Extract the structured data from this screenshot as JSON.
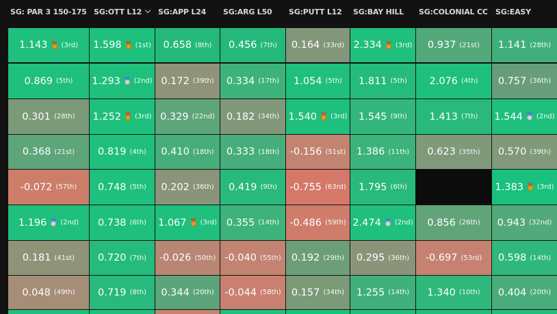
{
  "columns": [
    {
      "label": "SG: PAR 3 150-175",
      "sorted": false
    },
    {
      "label": "SG:OTT L12",
      "sorted": true
    },
    {
      "label": "SG:APP L24",
      "sorted": false
    },
    {
      "label": "SG:ARG L50",
      "sorted": false
    },
    {
      "label": "SG:PUTT L12",
      "sorted": false
    },
    {
      "label": "SG:BAY HILL",
      "sorted": false
    },
    {
      "label": "SG:COLONIAL CC",
      "sorted": false
    },
    {
      "label": "SG:EASY",
      "sorted": false
    }
  ],
  "colors": {
    "strong_green": "#19bd7c",
    "mid_green": "#3db37a",
    "olive": "#7e9a78",
    "neutral": "#9b9077",
    "salmon": "#c97e6c",
    "red": "#d67866",
    "empty": "#0d0d0d"
  },
  "rows": [
    [
      {
        "value": "1.143",
        "rank": "(3rd)",
        "medal": "gold",
        "color": "#1fbf7e"
      },
      {
        "value": "1.598",
        "rank": "(1st)",
        "medal": "gold",
        "color": "#1fbf7e"
      },
      {
        "value": "0.658",
        "rank": "(8th)",
        "medal": "",
        "color": "#24b97b"
      },
      {
        "value": "0.456",
        "rank": "(7th)",
        "medal": "",
        "color": "#24b97b"
      },
      {
        "value": "0.164",
        "rank": "(33rd)",
        "medal": "",
        "color": "#82977a"
      },
      {
        "value": "2.334",
        "rank": "(3rd)",
        "medal": "gold",
        "color": "#1fbf7e"
      },
      {
        "value": "0.937",
        "rank": "(21st)",
        "medal": "",
        "color": "#53a87a"
      },
      {
        "value": "1.141",
        "rank": "(28th)",
        "medal": "",
        "color": "#3fb07b"
      }
    ],
    [
      {
        "value": "0.869",
        "rank": "(5th)",
        "medal": "",
        "color": "#1fbf7e"
      },
      {
        "value": "1.293",
        "rank": "(2nd)",
        "medal": "silver",
        "color": "#1fbf7e"
      },
      {
        "value": "0.172",
        "rank": "(39th)",
        "medal": "",
        "color": "#8e9379"
      },
      {
        "value": "0.334",
        "rank": "(17th)",
        "medal": "",
        "color": "#3db37b"
      },
      {
        "value": "1.054",
        "rank": "(5th)",
        "medal": "",
        "color": "#1fbf7e"
      },
      {
        "value": "1.811",
        "rank": "(5th)",
        "medal": "",
        "color": "#24bb7c"
      },
      {
        "value": "2.076",
        "rank": "(4th)",
        "medal": "",
        "color": "#1fbf7e"
      },
      {
        "value": "0.757",
        "rank": "(36th)",
        "medal": "",
        "color": "#679e79"
      }
    ],
    [
      {
        "value": "0.301",
        "rank": "(28th)",
        "medal": "",
        "color": "#7b9a78"
      },
      {
        "value": "1.252",
        "rank": "(3rd)",
        "medal": "gold",
        "color": "#1fbf7e"
      },
      {
        "value": "0.329",
        "rank": "(22nd)",
        "medal": "",
        "color": "#5ea57a"
      },
      {
        "value": "0.182",
        "rank": "(34th)",
        "medal": "",
        "color": "#82977a"
      },
      {
        "value": "1.540",
        "rank": "(3rd)",
        "medal": "gold",
        "color": "#1fbf7e"
      },
      {
        "value": "1.545",
        "rank": "(9th)",
        "medal": "",
        "color": "#33b67c"
      },
      {
        "value": "1.413",
        "rank": "(7th)",
        "medal": "",
        "color": "#28b97c"
      },
      {
        "value": "1.544",
        "rank": "(2nd)",
        "medal": "silver",
        "color": "#1fbf7e"
      }
    ],
    [
      {
        "value": "0.368",
        "rank": "(21st)",
        "medal": "",
        "color": "#5ea57a"
      },
      {
        "value": "0.819",
        "rank": "(4th)",
        "medal": "",
        "color": "#1fbf7e"
      },
      {
        "value": "0.410",
        "rank": "(18th)",
        "medal": "",
        "color": "#47ae7b"
      },
      {
        "value": "0.333",
        "rank": "(18th)",
        "medal": "",
        "color": "#47ae7b"
      },
      {
        "value": "-0.156",
        "rank": "(51st)",
        "medal": "",
        "color": "#c28470"
      },
      {
        "value": "1.386",
        "rank": "(11th)",
        "medal": "",
        "color": "#3bb37b"
      },
      {
        "value": "0.623",
        "rank": "(35th)",
        "medal": "",
        "color": "#7f9979"
      },
      {
        "value": "0.570",
        "rank": "(39th)",
        "medal": "",
        "color": "#7f9979"
      }
    ],
    [
      {
        "value": "-0.072",
        "rank": "(57th)",
        "medal": "",
        "color": "#cc7e6b"
      },
      {
        "value": "0.748",
        "rank": "(5th)",
        "medal": "",
        "color": "#1fbf7e"
      },
      {
        "value": "0.202",
        "rank": "(36th)",
        "medal": "",
        "color": "#899479"
      },
      {
        "value": "0.419",
        "rank": "(9th)",
        "medal": "",
        "color": "#28b97c"
      },
      {
        "value": "-0.755",
        "rank": "(63rd)",
        "medal": "",
        "color": "#d4796a"
      },
      {
        "value": "1.795",
        "rank": "(6th)",
        "medal": "",
        "color": "#28b97c"
      },
      {
        "value": "",
        "rank": "",
        "medal": "",
        "color": "#0c0c0c"
      },
      {
        "value": "1.383",
        "rank": "(3rd)",
        "medal": "gold",
        "color": "#19c07e"
      }
    ],
    [
      {
        "value": "1.196",
        "rank": "(2nd)",
        "medal": "silver",
        "color": "#1fbf7e"
      },
      {
        "value": "0.738",
        "rank": "(6th)",
        "medal": "",
        "color": "#1fbf7e"
      },
      {
        "value": "1.067",
        "rank": "(3rd)",
        "medal": "gold",
        "color": "#1fbf7e"
      },
      {
        "value": "0.355",
        "rank": "(14th)",
        "medal": "",
        "color": "#3db37b"
      },
      {
        "value": "-0.486",
        "rank": "(59th)",
        "medal": "",
        "color": "#cf7c6b"
      },
      {
        "value": "2.474",
        "rank": "(2nd)",
        "medal": "silver",
        "color": "#1fbf7e"
      },
      {
        "value": "0.856",
        "rank": "(26th)",
        "medal": "",
        "color": "#62a47a"
      },
      {
        "value": "0.943",
        "rank": "(32nd)",
        "medal": "",
        "color": "#52a97a"
      }
    ],
    [
      {
        "value": "0.181",
        "rank": "(41st)",
        "medal": "",
        "color": "#8f9378"
      },
      {
        "value": "0.720",
        "rank": "(7th)",
        "medal": "",
        "color": "#24bb7c"
      },
      {
        "value": "-0.026",
        "rank": "(50th)",
        "medal": "",
        "color": "#b88673"
      },
      {
        "value": "-0.040",
        "rank": "(55th)",
        "medal": "",
        "color": "#c28371"
      },
      {
        "value": "0.192",
        "rank": "(29th)",
        "medal": "",
        "color": "#6b9e79"
      },
      {
        "value": "0.295",
        "rank": "(36th)",
        "medal": "",
        "color": "#8b9479"
      },
      {
        "value": "-0.697",
        "rank": "(53rd)",
        "medal": "",
        "color": "#c78170"
      },
      {
        "value": "0.598",
        "rank": "(14th)",
        "medal": "",
        "color": "#2fb77c"
      }
    ],
    [
      {
        "value": "0.048",
        "rank": "(49th)",
        "medal": "",
        "color": "#a58d76"
      },
      {
        "value": "0.719",
        "rank": "(8th)",
        "medal": "",
        "color": "#28b97c"
      },
      {
        "value": "0.344",
        "rank": "(20th)",
        "medal": "",
        "color": "#5ca57a"
      },
      {
        "value": "-0.044",
        "rank": "(58th)",
        "medal": "",
        "color": "#c98070"
      },
      {
        "value": "0.157",
        "rank": "(34th)",
        "medal": "",
        "color": "#7b9a78"
      },
      {
        "value": "1.255",
        "rank": "(14th)",
        "medal": "",
        "color": "#3fb07b"
      },
      {
        "value": "1.340",
        "rank": "(10th)",
        "medal": "",
        "color": "#2fb77c"
      },
      {
        "value": "0.404",
        "rank": "(20th)",
        "medal": "",
        "color": "#4bac7b"
      }
    ],
    [
      {
        "value": "",
        "rank": "",
        "medal": "",
        "color": "#1fbf7e"
      },
      {
        "value": "",
        "rank": "",
        "medal": "",
        "color": "#1fbf7e"
      },
      {
        "value": "",
        "rank": "",
        "medal": "",
        "color": "#c38471"
      },
      {
        "value": "",
        "rank": "",
        "medal": "",
        "color": "#1fbf7e"
      },
      {
        "value": "",
        "rank": "",
        "medal": "",
        "color": "#1fbf7e"
      },
      {
        "value": "",
        "rank": "",
        "medal": "",
        "color": "#1fbf7e"
      },
      {
        "value": "",
        "rank": "",
        "medal": "",
        "color": "#1fbf7e"
      },
      {
        "value": "",
        "rank": "",
        "medal": "",
        "color": "#1fbf7e"
      }
    ]
  ]
}
